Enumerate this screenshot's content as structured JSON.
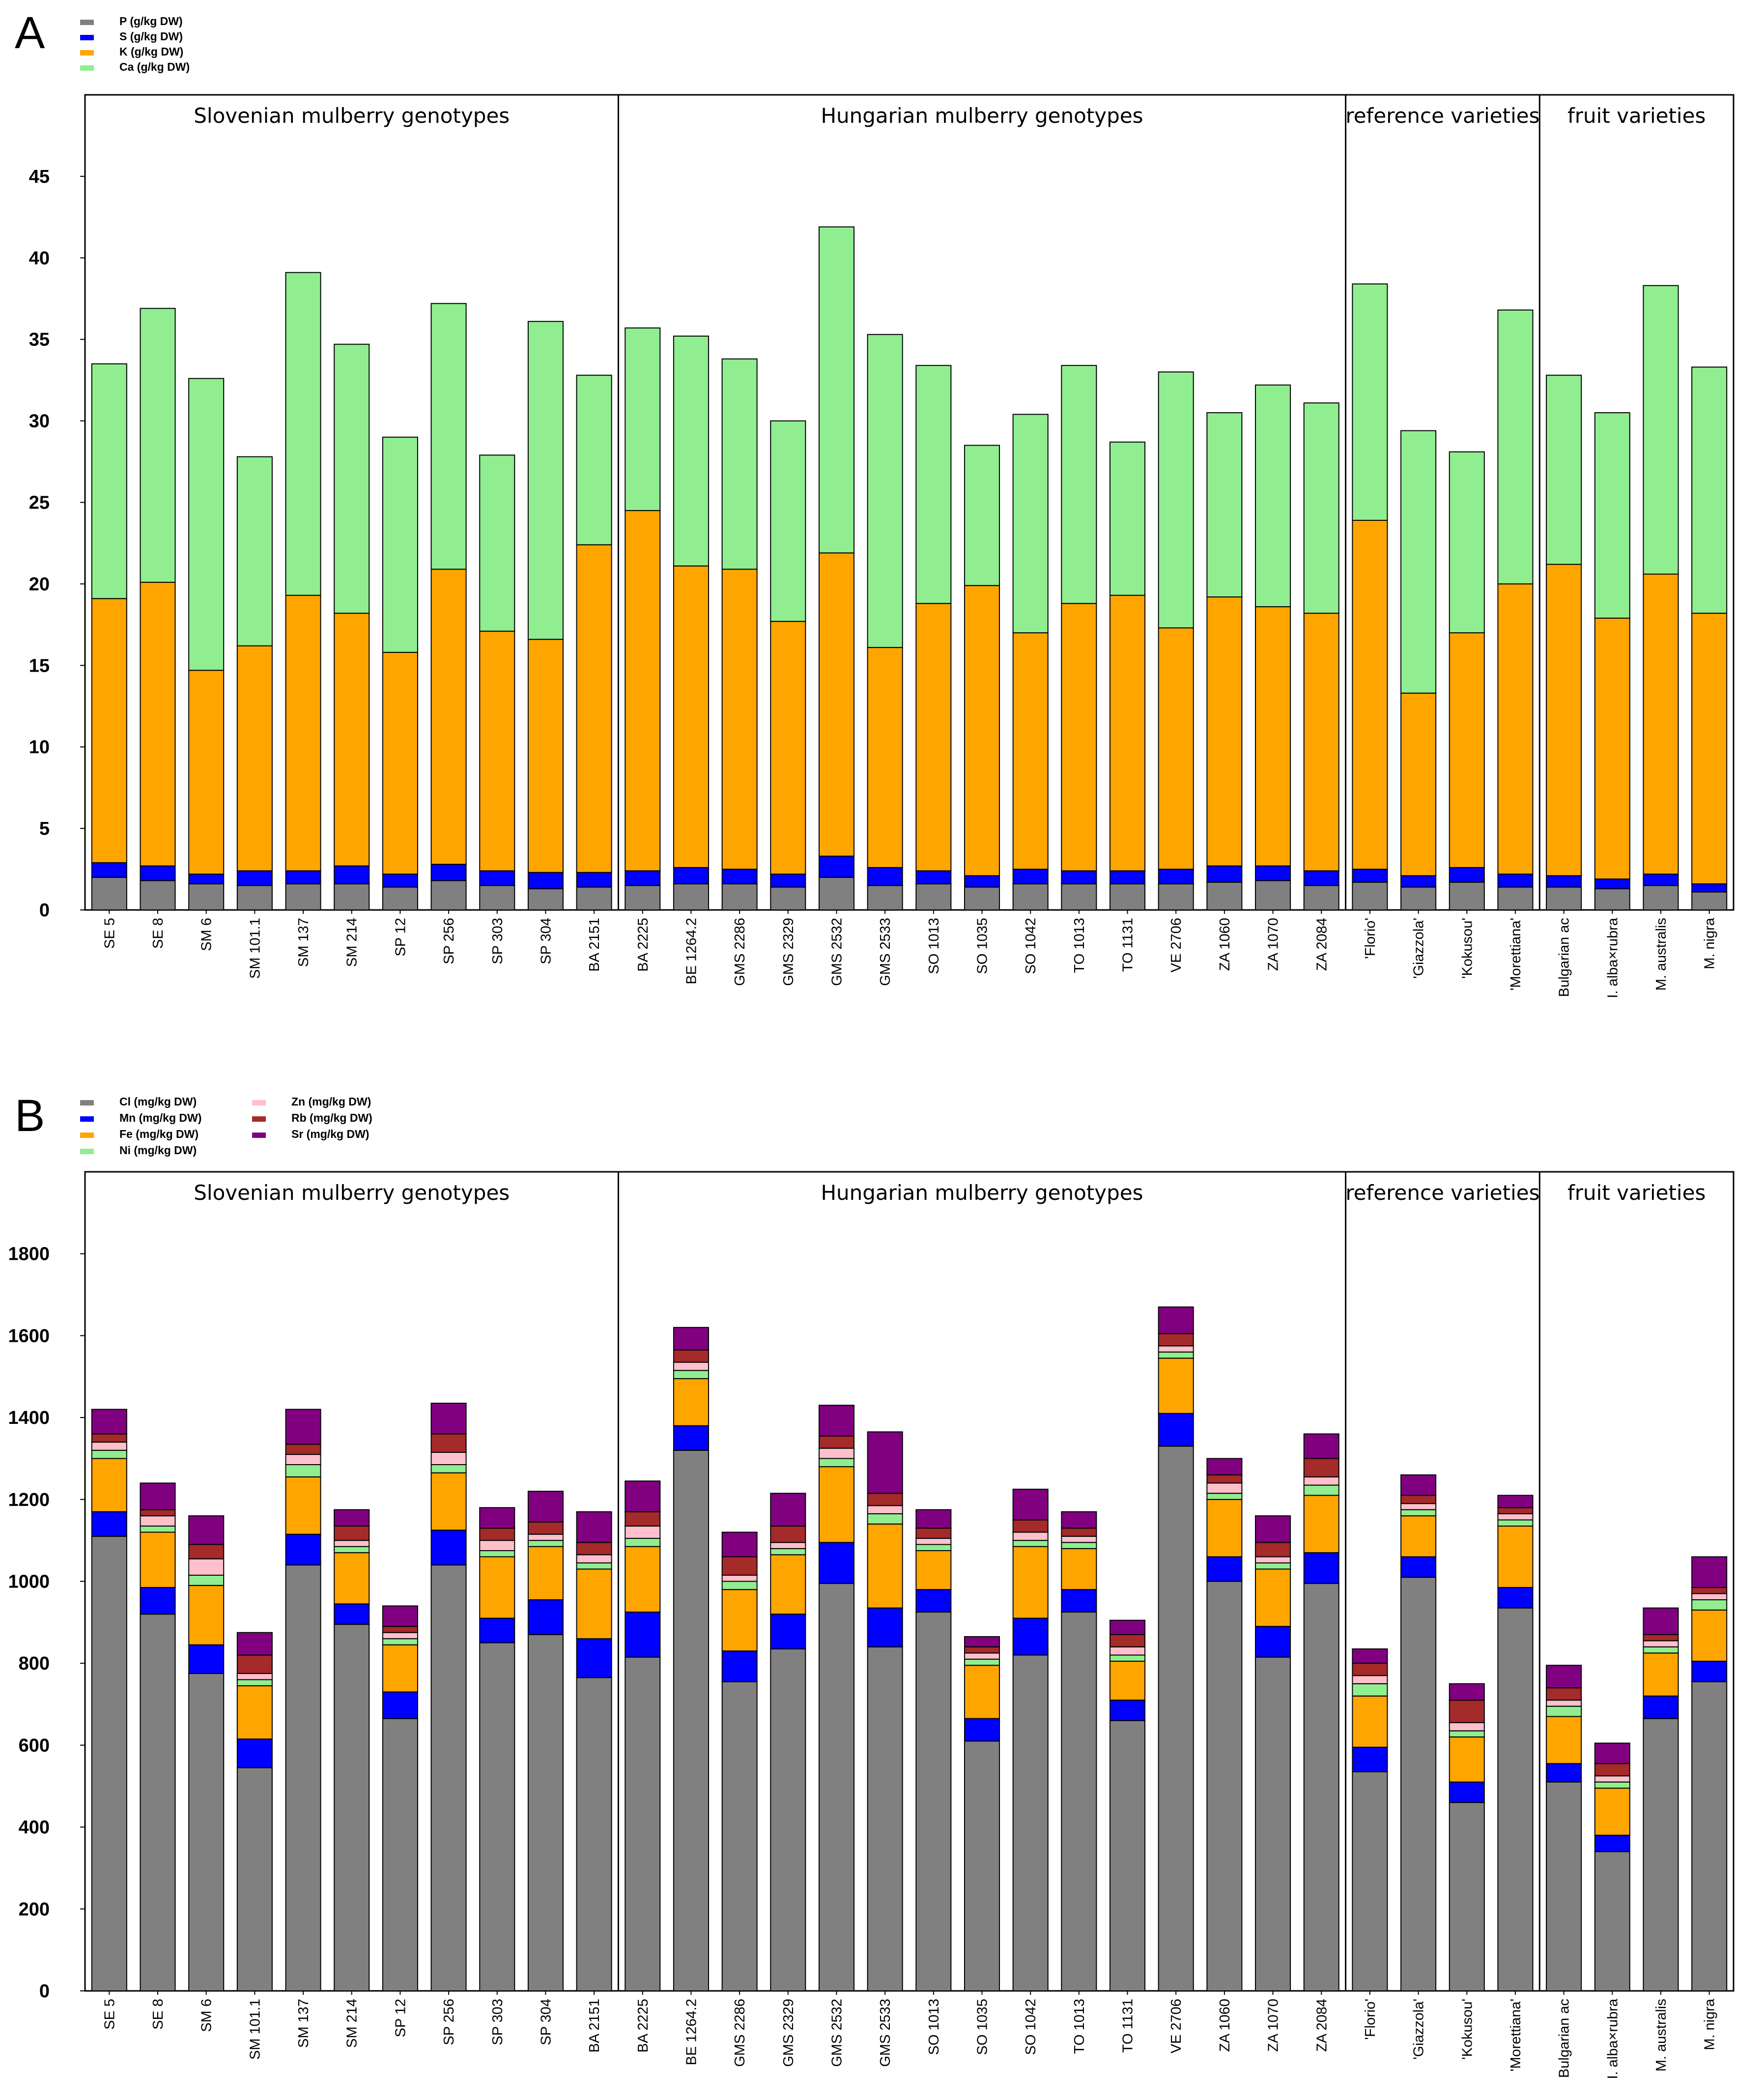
{
  "chart_data": [
    {
      "panel": "A",
      "type": "bar",
      "stacked": true,
      "title": "",
      "xlabel": "",
      "ylabel": "",
      "ylim": [
        0,
        50
      ],
      "yticks": [
        0,
        5,
        10,
        15,
        20,
        25,
        30,
        35,
        40,
        45
      ],
      "grid": false,
      "legend_position": "top-left",
      "groups": [
        {
          "label": "Slovenian mulberry genotypes",
          "start": 0,
          "end": 10
        },
        {
          "label": "Hungarian mulberry genotypes",
          "start": 11,
          "end": 25
        },
        {
          "label": "reference varieties",
          "start": 26,
          "end": 29
        },
        {
          "label": "fruit varieties",
          "start": 30,
          "end": 33
        }
      ],
      "categories": [
        "SE 5",
        "SE 8",
        "SM 6",
        "SM 101.1",
        "SM 137",
        "SM 214",
        "SP 12",
        "SP 256",
        "SP 303",
        "SP 304",
        "BA 2151",
        "BA 2225",
        "BE 1264.2",
        "GMS 2286",
        "GMS 2329",
        "GMS 2532",
        "GMS 2533",
        "SO 1013",
        "SO 1035",
        "SO 1042",
        "TO 1013",
        "TO 1131",
        "VE 2706",
        "ZA 1060",
        "ZA 1070",
        "ZA 2084",
        "'Florio'",
        "'Giazzola'",
        "'Kokusou'",
        "'Morettiana'",
        "Bulgarian ac",
        "I. alba×rubra",
        "M. australis",
        "M. nigra"
      ],
      "series": [
        {
          "name": "P (g/kg DW)",
          "color": "#808080",
          "values": [
            2.0,
            1.8,
            1.6,
            1.5,
            1.6,
            1.6,
            1.4,
            1.8,
            1.5,
            1.3,
            1.4,
            1.5,
            1.6,
            1.6,
            1.4,
            2.0,
            1.5,
            1.6,
            1.4,
            1.6,
            1.6,
            1.6,
            1.6,
            1.7,
            1.8,
            1.5,
            1.7,
            1.4,
            1.7,
            1.4,
            1.4,
            1.3,
            1.5,
            1.1
          ]
        },
        {
          "name": "S (g/kg DW)",
          "color": "#0000ff",
          "values": [
            0.9,
            0.9,
            0.6,
            0.9,
            0.8,
            1.1,
            0.8,
            1.0,
            0.9,
            1.0,
            0.9,
            0.9,
            1.0,
            0.9,
            0.8,
            1.3,
            1.1,
            0.8,
            0.7,
            0.9,
            0.8,
            0.8,
            0.9,
            1.0,
            0.9,
            0.9,
            0.8,
            0.7,
            0.9,
            0.8,
            0.7,
            0.6,
            0.7,
            0.5
          ]
        },
        {
          "name": "K (g/kg DW)",
          "color": "#ffa500",
          "values": [
            16.2,
            17.4,
            12.5,
            13.8,
            16.9,
            15.5,
            13.6,
            18.1,
            14.7,
            14.3,
            20.1,
            22.1,
            18.5,
            18.4,
            15.5,
            18.6,
            13.5,
            16.4,
            17.8,
            14.5,
            16.4,
            16.9,
            14.8,
            16.5,
            15.9,
            15.8,
            21.4,
            11.2,
            14.4,
            17.8,
            19.1,
            16.0,
            18.4,
            16.6
          ]
        },
        {
          "name": "Ca (g/kg DW)",
          "color": "#90ee90",
          "values": [
            14.4,
            16.8,
            17.9,
            11.6,
            19.8,
            16.5,
            13.2,
            16.3,
            10.8,
            19.5,
            10.4,
            11.2,
            14.1,
            12.9,
            12.3,
            20.0,
            19.2,
            14.6,
            8.6,
            13.4,
            14.6,
            9.4,
            15.7,
            11.3,
            13.6,
            12.9,
            14.5,
            16.1,
            11.1,
            16.8,
            11.6,
            12.6,
            17.7,
            15.1
          ]
        }
      ]
    },
    {
      "panel": "B",
      "type": "bar",
      "stacked": true,
      "title": "",
      "xlabel": "",
      "ylabel": "",
      "ylim": [
        0,
        2000
      ],
      "yticks": [
        0,
        200,
        400,
        600,
        800,
        1000,
        1200,
        1400,
        1600,
        1800
      ],
      "grid": false,
      "legend_position": "top-left",
      "groups": [
        {
          "label": "Slovenian mulberry genotypes",
          "start": 0,
          "end": 10
        },
        {
          "label": "Hungarian mulberry genotypes",
          "start": 11,
          "end": 25
        },
        {
          "label": "reference varieties",
          "start": 26,
          "end": 29
        },
        {
          "label": "fruit varieties",
          "start": 30,
          "end": 33
        }
      ],
      "categories": [
        "SE 5",
        "SE 8",
        "SM 6",
        "SM 101.1",
        "SM 137",
        "SM 214",
        "SP 12",
        "SP 256",
        "SP 303",
        "SP 304",
        "BA 2151",
        "BA 2225",
        "BE 1264.2",
        "GMS 2286",
        "GMS 2329",
        "GMS 2532",
        "GMS 2533",
        "SO 1013",
        "SO 1035",
        "SO 1042",
        "TO 1013",
        "TO 1131",
        "VE 2706",
        "ZA 1060",
        "ZA 1070",
        "ZA 2084",
        "'Florio'",
        "'Giazzola'",
        "'Kokusou'",
        "'Morettiana'",
        "Bulgarian ac",
        "I. alba×rubra",
        "M. australis",
        "M. nigra"
      ],
      "series": [
        {
          "name": "Cl (mg/kg DW)",
          "color": "#808080",
          "values": [
            1110,
            920,
            775,
            545,
            1040,
            895,
            665,
            1040,
            850,
            870,
            765,
            815,
            1320,
            755,
            835,
            995,
            840,
            925,
            610,
            820,
            925,
            660,
            1330,
            1000,
            815,
            995,
            535,
            1010,
            460,
            935,
            510,
            340,
            665,
            755
          ]
        },
        {
          "name": "Mn (mg/kg DW)",
          "color": "#0000ff",
          "values": [
            60,
            65,
            70,
            70,
            75,
            50,
            65,
            85,
            60,
            85,
            95,
            110,
            60,
            75,
            85,
            100,
            95,
            55,
            55,
            90,
            55,
            50,
            80,
            60,
            75,
            75,
            60,
            50,
            50,
            50,
            45,
            40,
            55,
            50
          ]
        },
        {
          "name": "Fe (mg/kg DW)",
          "color": "#ffa500",
          "values": [
            130,
            135,
            145,
            130,
            140,
            125,
            115,
            140,
            150,
            130,
            170,
            160,
            115,
            150,
            145,
            185,
            205,
            95,
            130,
            175,
            100,
            95,
            135,
            140,
            140,
            140,
            125,
            100,
            110,
            150,
            115,
            115,
            105,
            125
          ]
        },
        {
          "name": "Ni (mg/kg DW)",
          "color": "#90ee90",
          "values": [
            20,
            15,
            25,
            15,
            30,
            15,
            15,
            20,
            15,
            15,
            15,
            20,
            20,
            20,
            15,
            20,
            25,
            15,
            15,
            15,
            15,
            15,
            15,
            15,
            15,
            25,
            30,
            15,
            15,
            15,
            25,
            15,
            15,
            25
          ]
        },
        {
          "name": "Zn (mg/kg DW)",
          "color": "#ffc0cb",
          "values": [
            20,
            25,
            40,
            15,
            25,
            15,
            15,
            30,
            25,
            15,
            20,
            30,
            20,
            15,
            15,
            25,
            20,
            15,
            15,
            20,
            15,
            20,
            15,
            25,
            15,
            20,
            20,
            15,
            20,
            15,
            15,
            15,
            15,
            15
          ]
        },
        {
          "name": "Rb (mg/kg DW)",
          "color": "#a52a2a",
          "values": [
            20,
            15,
            35,
            45,
            25,
            35,
            15,
            45,
            30,
            30,
            30,
            35,
            30,
            45,
            40,
            30,
            30,
            25,
            15,
            30,
            20,
            30,
            30,
            20,
            35,
            45,
            30,
            20,
            55,
            15,
            30,
            30,
            15,
            15
          ]
        },
        {
          "name": "Sr (mg/kg DW)",
          "color": "#800080",
          "values": [
            60,
            65,
            70,
            55,
            85,
            40,
            50,
            75,
            50,
            75,
            75,
            75,
            55,
            60,
            80,
            75,
            150,
            45,
            25,
            75,
            40,
            35,
            65,
            40,
            65,
            60,
            35,
            50,
            40,
            30,
            55,
            50,
            65,
            75
          ]
        }
      ]
    }
  ],
  "panels": {
    "A": {
      "letter": "A"
    },
    "B": {
      "letter": "B"
    }
  }
}
